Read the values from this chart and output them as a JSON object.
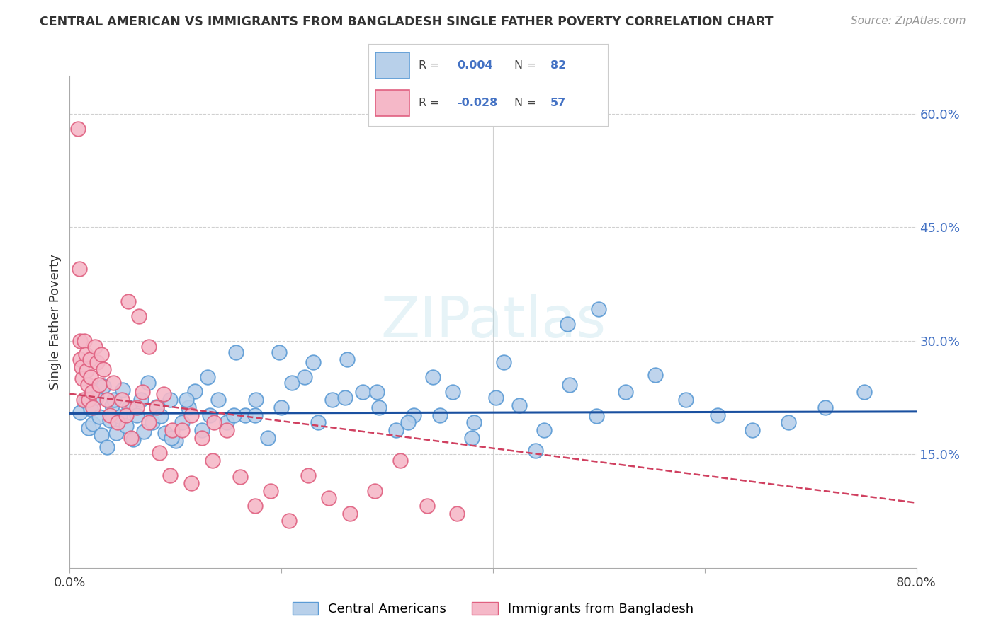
{
  "title": "CENTRAL AMERICAN VS IMMIGRANTS FROM BANGLADESH SINGLE FATHER POVERTY CORRELATION CHART",
  "source": "Source: ZipAtlas.com",
  "ylabel": "Single Father Poverty",
  "xlim": [
    0.0,
    0.8
  ],
  "ylim": [
    0.0,
    0.65
  ],
  "ytick_vals": [
    0.15,
    0.3,
    0.45,
    0.6
  ],
  "ytick_labels": [
    "15.0%",
    "30.0%",
    "45.0%",
    "60.0%"
  ],
  "xtick_vals": [
    0.0,
    0.2,
    0.4,
    0.6,
    0.8
  ],
  "xtick_labels": [
    "0.0%",
    "",
    "",
    "",
    "80.0%"
  ],
  "blue_R": "0.004",
  "blue_N": "82",
  "pink_R": "-0.028",
  "pink_N": "57",
  "blue_fill": "#b8d0ea",
  "blue_edge": "#5b9bd5",
  "pink_fill": "#f5b8c8",
  "pink_edge": "#e06080",
  "blue_line": "#1a50a0",
  "pink_line": "#d04060",
  "legend_blue": "Central Americans",
  "legend_pink": "Immigrants from Bangladesh",
  "watermark": "ZIPatlas",
  "bg": "#ffffff",
  "grid_color": "#d0d0d0",
  "blue_x": [
    0.01,
    0.015,
    0.018,
    0.02,
    0.022,
    0.025,
    0.028,
    0.03,
    0.032,
    0.035,
    0.038,
    0.04,
    0.042,
    0.044,
    0.047,
    0.05,
    0.053,
    0.056,
    0.06,
    0.063,
    0.067,
    0.07,
    0.074,
    0.078,
    0.082,
    0.086,
    0.09,
    0.095,
    0.1,
    0.106,
    0.112,
    0.118,
    0.125,
    0.132,
    0.14,
    0.148,
    0.157,
    0.166,
    0.176,
    0.187,
    0.198,
    0.21,
    0.222,
    0.235,
    0.248,
    0.262,
    0.277,
    0.292,
    0.308,
    0.325,
    0.343,
    0.362,
    0.382,
    0.403,
    0.425,
    0.448,
    0.472,
    0.498,
    0.525,
    0.553,
    0.582,
    0.612,
    0.645,
    0.679,
    0.714,
    0.751,
    0.096,
    0.11,
    0.13,
    0.155,
    0.175,
    0.2,
    0.23,
    0.26,
    0.29,
    0.32,
    0.35,
    0.38,
    0.41,
    0.44,
    0.47,
    0.5
  ],
  "blue_y": [
    0.205,
    0.22,
    0.185,
    0.21,
    0.19,
    0.225,
    0.2,
    0.175,
    0.24,
    0.16,
    0.195,
    0.215,
    0.222,
    0.178,
    0.2,
    0.235,
    0.188,
    0.212,
    0.17,
    0.202,
    0.222,
    0.18,
    0.245,
    0.192,
    0.213,
    0.201,
    0.178,
    0.222,
    0.168,
    0.192,
    0.212,
    0.233,
    0.182,
    0.202,
    0.222,
    0.192,
    0.285,
    0.202,
    0.222,
    0.172,
    0.285,
    0.245,
    0.252,
    0.192,
    0.222,
    0.275,
    0.232,
    0.212,
    0.182,
    0.202,
    0.252,
    0.232,
    0.192,
    0.225,
    0.215,
    0.182,
    0.242,
    0.201,
    0.232,
    0.255,
    0.222,
    0.202,
    0.182,
    0.192,
    0.212,
    0.232,
    0.172,
    0.222,
    0.252,
    0.202,
    0.202,
    0.212,
    0.272,
    0.225,
    0.232,
    0.192,
    0.202,
    0.172,
    0.272,
    0.155,
    0.322,
    0.342
  ],
  "pink_x": [
    0.008,
    0.009,
    0.01,
    0.01,
    0.011,
    0.012,
    0.013,
    0.014,
    0.015,
    0.016,
    0.017,
    0.018,
    0.019,
    0.02,
    0.021,
    0.022,
    0.024,
    0.026,
    0.028,
    0.03,
    0.032,
    0.035,
    0.038,
    0.041,
    0.045,
    0.049,
    0.053,
    0.058,
    0.063,
    0.069,
    0.075,
    0.082,
    0.089,
    0.097,
    0.106,
    0.115,
    0.125,
    0.136,
    0.148,
    0.161,
    0.175,
    0.19,
    0.207,
    0.225,
    0.245,
    0.265,
    0.288,
    0.312,
    0.338,
    0.366,
    0.055,
    0.065,
    0.075,
    0.085,
    0.095,
    0.115,
    0.135
  ],
  "pink_y": [
    0.58,
    0.395,
    0.3,
    0.275,
    0.265,
    0.25,
    0.222,
    0.3,
    0.282,
    0.26,
    0.242,
    0.222,
    0.275,
    0.252,
    0.232,
    0.212,
    0.292,
    0.272,
    0.242,
    0.282,
    0.262,
    0.222,
    0.202,
    0.245,
    0.192,
    0.222,
    0.202,
    0.172,
    0.212,
    0.232,
    0.192,
    0.212,
    0.23,
    0.182,
    0.182,
    0.202,
    0.172,
    0.192,
    0.182,
    0.12,
    0.082,
    0.102,
    0.062,
    0.122,
    0.092,
    0.072,
    0.102,
    0.142,
    0.082,
    0.072,
    0.352,
    0.332,
    0.292,
    0.152,
    0.122,
    0.112,
    0.142
  ]
}
